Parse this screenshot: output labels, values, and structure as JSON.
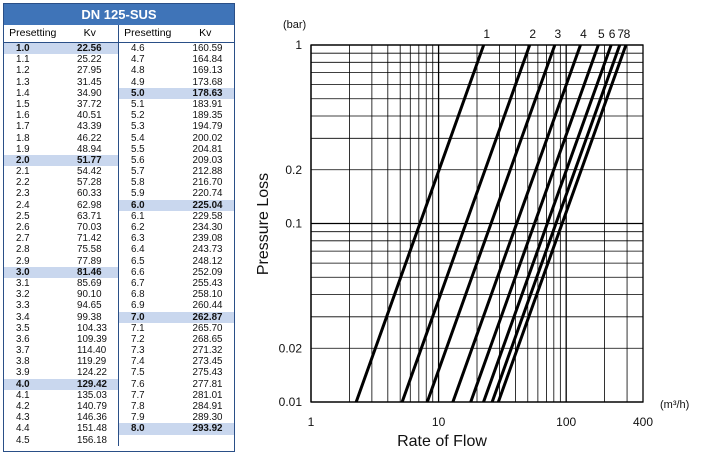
{
  "table": {
    "title": "DN 125-SUS",
    "headers": [
      "Presetting",
      "Kv",
      "Presetting",
      "Kv"
    ],
    "rows": [
      [
        "1.0",
        "22.56"
      ],
      [
        "1.1",
        "25.22"
      ],
      [
        "1.2",
        "27.95"
      ],
      [
        "1.3",
        "31.45"
      ],
      [
        "1.4",
        "34.90"
      ],
      [
        "1.5",
        "37.72"
      ],
      [
        "1.6",
        "40.51"
      ],
      [
        "1.7",
        "43.39"
      ],
      [
        "1.8",
        "46.22"
      ],
      [
        "1.9",
        "48.94"
      ],
      [
        "2.0",
        "51.77"
      ],
      [
        "2.1",
        "54.42"
      ],
      [
        "2.2",
        "57.28"
      ],
      [
        "2.3",
        "60.33"
      ],
      [
        "2.4",
        "62.98"
      ],
      [
        "2.5",
        "63.71"
      ],
      [
        "2.6",
        "70.03"
      ],
      [
        "2.7",
        "71.42"
      ],
      [
        "2.8",
        "75.58"
      ],
      [
        "2.9",
        "77.89"
      ],
      [
        "3.0",
        "81.46"
      ],
      [
        "3.1",
        "85.69"
      ],
      [
        "3.2",
        "90.10"
      ],
      [
        "3.3",
        "94.65"
      ],
      [
        "3.4",
        "99.38"
      ],
      [
        "3.5",
        "104.33"
      ],
      [
        "3.6",
        "109.39"
      ],
      [
        "3.7",
        "114.40"
      ],
      [
        "3.8",
        "119.29"
      ],
      [
        "3.9",
        "124.22"
      ],
      [
        "4.0",
        "129.42"
      ],
      [
        "4.1",
        "135.03"
      ],
      [
        "4.2",
        "140.79"
      ],
      [
        "4.3",
        "146.36"
      ],
      [
        "4.4",
        "151.48"
      ],
      [
        "4.5",
        "156.18"
      ],
      [
        "4.6",
        "160.59"
      ],
      [
        "4.7",
        "164.84"
      ],
      [
        "4.8",
        "169.13"
      ],
      [
        "4.9",
        "173.68"
      ],
      [
        "5.0",
        "178.63"
      ],
      [
        "5.1",
        "183.91"
      ],
      [
        "5.2",
        "189.35"
      ],
      [
        "5.3",
        "194.79"
      ],
      [
        "5.4",
        "200.02"
      ],
      [
        "5.5",
        "204.81"
      ],
      [
        "5.6",
        "209.03"
      ],
      [
        "5.7",
        "212.88"
      ],
      [
        "5.8",
        "216.70"
      ],
      [
        "5.9",
        "220.74"
      ],
      [
        "6.0",
        "225.04"
      ],
      [
        "6.1",
        "229.58"
      ],
      [
        "6.2",
        "234.30"
      ],
      [
        "6.3",
        "239.08"
      ],
      [
        "6.4",
        "243.73"
      ],
      [
        "6.5",
        "248.12"
      ],
      [
        "6.6",
        "252.09"
      ],
      [
        "6.7",
        "255.43"
      ],
      [
        "6.8",
        "258.10"
      ],
      [
        "6.9",
        "260.44"
      ],
      [
        "7.0",
        "262.87"
      ],
      [
        "7.1",
        "265.70"
      ],
      [
        "7.2",
        "268.65"
      ],
      [
        "7.3",
        "271.32"
      ],
      [
        "7.4",
        "273.45"
      ],
      [
        "7.5",
        "275.43"
      ],
      [
        "7.6",
        "277.81"
      ],
      [
        "7.7",
        "281.01"
      ],
      [
        "7.8",
        "284.91"
      ],
      [
        "7.9",
        "289.30"
      ],
      [
        "8.0",
        "293.92"
      ]
    ],
    "highlight_color": "#c9d7ee",
    "header_color": "#3f74b8"
  },
  "chart_data": {
    "type": "line",
    "x_scale": "log",
    "y_scale": "log",
    "xlabel": "Rate of Flow",
    "ylabel": "Pressure Loss",
    "x_unit": "(m³/h)",
    "y_unit": "(bar)",
    "xlim": [
      1,
      400
    ],
    "ylim": [
      0.01,
      1
    ],
    "x_ticks": [
      "1",
      "10",
      "100",
      "400"
    ],
    "y_ticks": [
      "1",
      "0.2",
      "0.1",
      "0.02",
      "0.01"
    ],
    "grid": true,
    "series": [
      {
        "name": "1",
        "x": [
          2.26,
          22.56
        ],
        "y": [
          0.01,
          1
        ]
      },
      {
        "name": "2",
        "x": [
          5.18,
          51.77
        ],
        "y": [
          0.01,
          1
        ]
      },
      {
        "name": "3",
        "x": [
          8.15,
          81.46
        ],
        "y": [
          0.01,
          1
        ]
      },
      {
        "name": "4",
        "x": [
          12.94,
          129.42
        ],
        "y": [
          0.01,
          1
        ]
      },
      {
        "name": "5",
        "x": [
          17.86,
          178.63
        ],
        "y": [
          0.01,
          1
        ]
      },
      {
        "name": "6",
        "x": [
          22.5,
          225.04
        ],
        "y": [
          0.01,
          1
        ]
      },
      {
        "name": "7",
        "x": [
          26.29,
          262.87
        ],
        "y": [
          0.01,
          1
        ]
      },
      {
        "name": "8",
        "x": [
          29.39,
          293.92
        ],
        "y": [
          0.01,
          1
        ]
      }
    ]
  }
}
